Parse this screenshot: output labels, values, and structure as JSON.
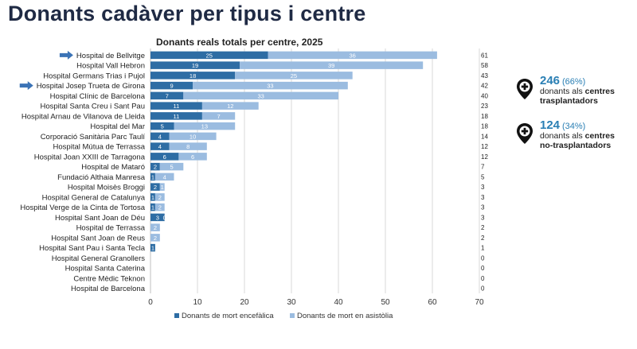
{
  "header": {
    "title": "Donants cadàver per tipus i centre"
  },
  "colors": {
    "brain_death": "#2e6da4",
    "asystole": "#9bbce0",
    "arrow": "#3b73b6",
    "stat_number": "#2a7fb4"
  },
  "chart_data": {
    "type": "bar",
    "orientation": "horizontal",
    "stacked": true,
    "title": "Donants reals totals per centre, 2025",
    "categories": [
      "Hospital de Bellvitge",
      "Hospital Vall Hebron",
      "Hospital Germans Trias i Pujol",
      "Hospital Josep Trueta de Girona",
      "Hospital Clínic de Barcelona",
      "Hospital Santa Creu i Sant Pau",
      "Hospital Arnau de Vilanova de Lleida",
      "Hospital del Mar",
      "Corporació Sanitària Parc Taulí",
      "Hospital Mútua de Terrassa",
      "Hospital Joan XXIII de Tarragona",
      "Hospital de Mataró",
      "Fundació Althaia Manresa",
      "Hospital Moisès Broggi",
      "Hospital General de Catalunya",
      "Hospital Verge de la Cinta de Tortosa",
      "Hospital Sant Joan de Déu",
      "Hospital de Terrassa",
      "Hospital Sant Joan de Reus",
      "Hospital Sant Pau i Santa Tecla",
      "Hospital General Granollers",
      "Hospital Santa Caterina",
      "Centre Mèdic Teknon",
      "Hospital de Barcelona"
    ],
    "series": [
      {
        "name": "Donants de mort encefàlica",
        "values": [
          25,
          19,
          18,
          9,
          7,
          11,
          11,
          5,
          4,
          4,
          6,
          2,
          1,
          2,
          1,
          1,
          3,
          0,
          0,
          1,
          0,
          0,
          0,
          0
        ]
      },
      {
        "name": "Donants de mort en asistòlia",
        "values": [
          36,
          39,
          25,
          33,
          33,
          12,
          7,
          13,
          10,
          8,
          6,
          5,
          4,
          1,
          2,
          2,
          0,
          2,
          2,
          0,
          0,
          0,
          0,
          0
        ]
      }
    ],
    "segment_labels_enc": [
      "25",
      "19",
      "18",
      "9",
      "7",
      "11",
      "11",
      "5",
      "4",
      "4",
      "6",
      "2",
      "1",
      "2",
      "1",
      "1",
      "3",
      "",
      "",
      "1",
      "",
      "",
      "",
      ""
    ],
    "segment_labels_asi": [
      "36",
      "39",
      "25",
      "33",
      "33",
      "12",
      "7",
      "13",
      "10",
      "8",
      "6",
      "5",
      "4",
      "1",
      "2",
      "2",
      "0",
      "2",
      "2",
      "",
      "",
      "",
      "",
      ""
    ],
    "totals": [
      "61",
      "58",
      "43",
      "42",
      "40",
      "23",
      "18",
      "18",
      "14",
      "12",
      "12",
      "7",
      "5",
      "3",
      "3",
      "3",
      "3",
      "2",
      "2",
      "1",
      "0",
      "0",
      "0",
      "0"
    ],
    "highlighted": [
      "Hospital de Bellvitge",
      "Hospital Josep Trueta de Girona"
    ],
    "x_ticks": [
      "0",
      "10",
      "20",
      "30",
      "40",
      "50",
      "60",
      "70"
    ],
    "xlim": [
      0,
      70
    ],
    "grid": true,
    "legend_position": "bottom"
  },
  "stats": [
    {
      "number": "246",
      "pct": "(66%)",
      "line1": "donants als ",
      "bold1": "centres",
      "bold2": "trasplantadors"
    },
    {
      "number": "124",
      "pct": "(34%)",
      "line1": "donants als ",
      "bold1": "centres",
      "bold2": "no-trasplantadors"
    }
  ]
}
